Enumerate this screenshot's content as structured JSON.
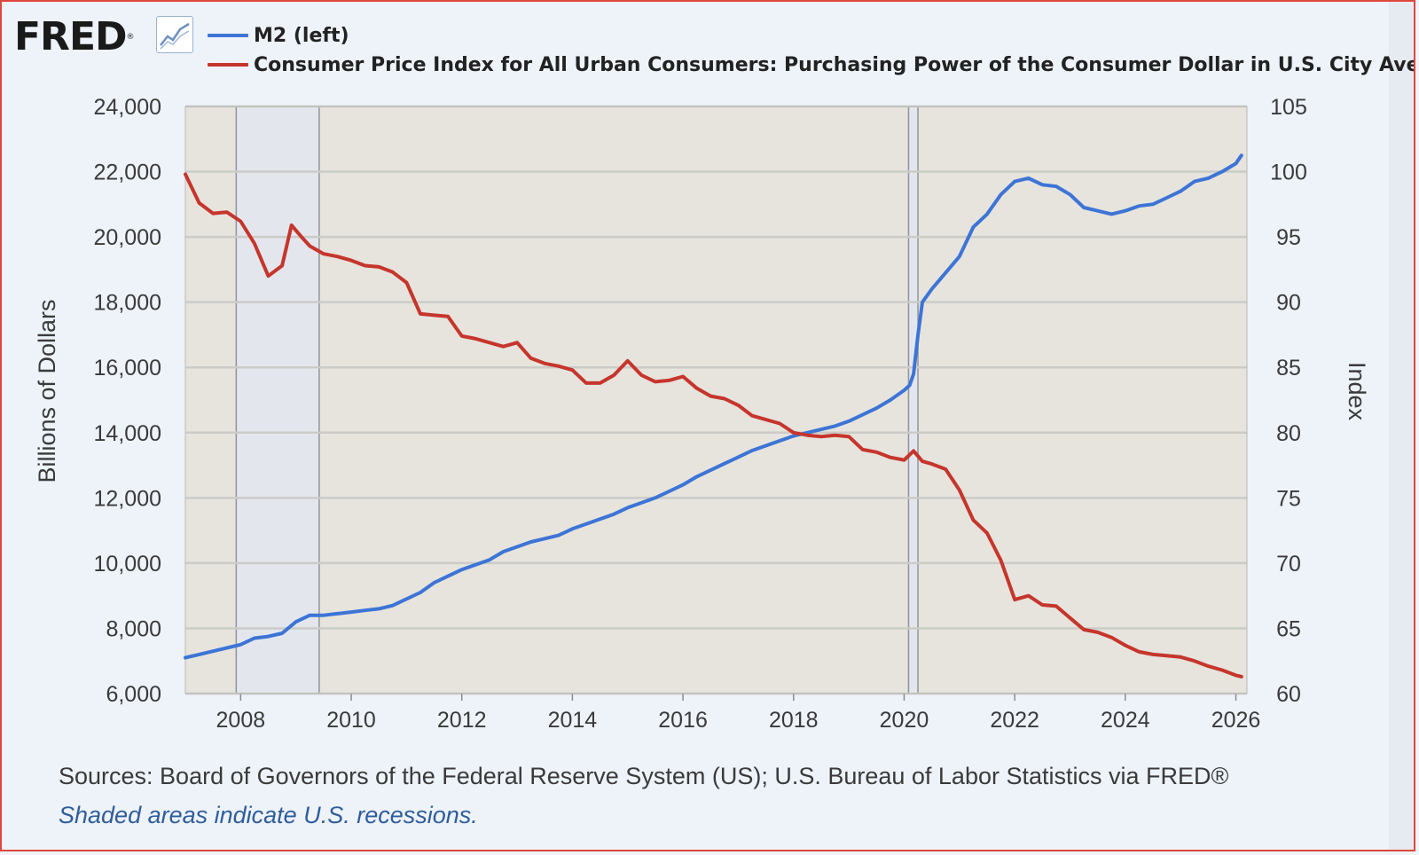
{
  "header": {
    "logo_text": "FRED",
    "logo_mark": "®",
    "logo_icon": "line-chart-icon"
  },
  "colors": {
    "m2": "#3d74d6",
    "cpi": "#c6352c",
    "plot_bg": "#e6e4dd",
    "recession": "#e3e7ed",
    "grid": "#cbcbc8"
  },
  "legend": {
    "m2_label": "M2 (left)",
    "cpi_label": "Consumer Price Index for All Urban Consumers: Purchasing Power of the Consumer Dollar in U.S. City Averag"
  },
  "footer": {
    "sources": "Sources: Board of Governors of the Federal Reserve System (US); U.S. Bureau of Labor Statistics via FRED®",
    "note": "Shaded areas indicate U.S. recessions."
  },
  "chart_data": {
    "type": "line",
    "xlim": [
      2007.0,
      2026.2
    ],
    "x_ticks": [
      2008,
      2010,
      2012,
      2014,
      2016,
      2018,
      2020,
      2022,
      2024,
      2026
    ],
    "x_tick_labels": [
      "2008",
      "2010",
      "2012",
      "2014",
      "2016",
      "2018",
      "2020",
      "2022",
      "2024",
      "2026"
    ],
    "ylabel_left": "Billions of Dollars",
    "ylabel_right": "Index",
    "ylim_left": [
      6000,
      24000
    ],
    "ylim_right": [
      60,
      105
    ],
    "y_ticks_left": [
      6000,
      8000,
      10000,
      12000,
      14000,
      16000,
      18000,
      20000,
      22000,
      24000
    ],
    "y_tick_labels_left": [
      "6,000",
      "8,000",
      "10,000",
      "12,000",
      "14,000",
      "16,000",
      "18,000",
      "20,000",
      "22,000",
      "24,000"
    ],
    "y_ticks_right": [
      60,
      65,
      70,
      75,
      80,
      85,
      90,
      95,
      100,
      105
    ],
    "y_tick_labels_right": [
      "60",
      "65",
      "70",
      "75",
      "80",
      "85",
      "90",
      "95",
      "100",
      "105"
    ],
    "grid": true,
    "recessions": [
      {
        "start": 2007.92,
        "end": 2009.42
      },
      {
        "start": 2020.08,
        "end": 2020.25
      }
    ],
    "series": [
      {
        "name": "M2 (left)",
        "axis": "left",
        "x": [
          2007.0,
          2007.25,
          2007.5,
          2007.75,
          2008.0,
          2008.25,
          2008.5,
          2008.75,
          2009.0,
          2009.25,
          2009.5,
          2009.75,
          2010.0,
          2010.25,
          2010.5,
          2010.75,
          2011.0,
          2011.25,
          2011.5,
          2011.75,
          2012.0,
          2012.25,
          2012.5,
          2012.75,
          2013.0,
          2013.25,
          2013.5,
          2013.75,
          2014.0,
          2014.25,
          2014.5,
          2014.75,
          2015.0,
          2015.25,
          2015.5,
          2015.75,
          2016.0,
          2016.25,
          2016.5,
          2016.75,
          2017.0,
          2017.25,
          2017.5,
          2017.75,
          2018.0,
          2018.25,
          2018.5,
          2018.75,
          2019.0,
          2019.25,
          2019.5,
          2019.75,
          2020.0,
          2020.1,
          2020.17,
          2020.25,
          2020.33,
          2020.5,
          2020.75,
          2021.0,
          2021.25,
          2021.5,
          2021.75,
          2022.0,
          2022.25,
          2022.5,
          2022.75,
          2023.0,
          2023.25,
          2023.5,
          2023.75,
          2024.0,
          2024.25,
          2024.5,
          2024.75,
          2025.0,
          2025.25,
          2025.5,
          2025.75,
          2026.0,
          2026.1
        ],
        "values": [
          7100,
          7200,
          7300,
          7400,
          7500,
          7700,
          7750,
          7850,
          8200,
          8400,
          8400,
          8450,
          8500,
          8550,
          8600,
          8700,
          8900,
          9100,
          9400,
          9600,
          9800,
          9950,
          10100,
          10350,
          10500,
          10650,
          10750,
          10850,
          11050,
          11200,
          11350,
          11500,
          11700,
          11850,
          12000,
          12200,
          12400,
          12650,
          12850,
          13050,
          13250,
          13450,
          13600,
          13750,
          13900,
          14000,
          14100,
          14200,
          14350,
          14550,
          14750,
          15000,
          15300,
          15450,
          15800,
          17000,
          18000,
          18400,
          18900,
          19400,
          20300,
          20700,
          21300,
          21700,
          21800,
          21600,
          21550,
          21300,
          20900,
          20800,
          20700,
          20800,
          20950,
          21000,
          21200,
          21400,
          21700,
          21800,
          22000,
          22250,
          22500
        ]
      },
      {
        "name": "Consumer Price Index for All Urban Consumers: Purchasing Power of the Consumer Dollar in U.S. City Averag",
        "axis": "right",
        "x": [
          2007.0,
          2007.25,
          2007.5,
          2007.75,
          2008.0,
          2008.25,
          2008.5,
          2008.75,
          2008.92,
          2009.1,
          2009.25,
          2009.5,
          2009.75,
          2010.0,
          2010.25,
          2010.5,
          2010.75,
          2011.0,
          2011.25,
          2011.5,
          2011.75,
          2012.0,
          2012.25,
          2012.5,
          2012.75,
          2013.0,
          2013.25,
          2013.5,
          2013.75,
          2014.0,
          2014.25,
          2014.5,
          2014.75,
          2015.0,
          2015.25,
          2015.5,
          2015.75,
          2016.0,
          2016.25,
          2016.5,
          2016.75,
          2017.0,
          2017.25,
          2017.5,
          2017.75,
          2018.0,
          2018.25,
          2018.5,
          2018.75,
          2019.0,
          2019.25,
          2019.5,
          2019.75,
          2020.0,
          2020.17,
          2020.33,
          2020.5,
          2020.75,
          2021.0,
          2021.25,
          2021.5,
          2021.75,
          2022.0,
          2022.25,
          2022.5,
          2022.75,
          2023.0,
          2023.25,
          2023.5,
          2023.75,
          2024.0,
          2024.25,
          2024.5,
          2024.75,
          2025.0,
          2025.25,
          2025.5,
          2025.75,
          2026.0,
          2026.1
        ],
        "values": [
          99.8,
          97.6,
          96.8,
          96.9,
          96.2,
          94.5,
          92.0,
          92.8,
          95.9,
          95.0,
          94.3,
          93.7,
          93.5,
          93.2,
          92.8,
          92.7,
          92.3,
          91.5,
          89.1,
          89.0,
          88.9,
          87.4,
          87.2,
          86.9,
          86.6,
          86.9,
          85.7,
          85.3,
          85.1,
          84.8,
          83.8,
          83.8,
          84.4,
          85.5,
          84.4,
          83.9,
          84.0,
          84.3,
          83.4,
          82.8,
          82.6,
          82.1,
          81.3,
          81.0,
          80.7,
          80.0,
          79.8,
          79.7,
          79.8,
          79.7,
          78.7,
          78.5,
          78.1,
          77.9,
          78.6,
          77.8,
          77.6,
          77.2,
          75.6,
          73.3,
          72.3,
          70.2,
          67.2,
          67.5,
          66.8,
          66.7,
          65.8,
          64.9,
          64.7,
          64.3,
          63.7,
          63.2,
          63.0,
          62.9,
          62.8,
          62.5,
          62.1,
          61.8,
          61.4,
          61.3
        ]
      }
    ]
  }
}
